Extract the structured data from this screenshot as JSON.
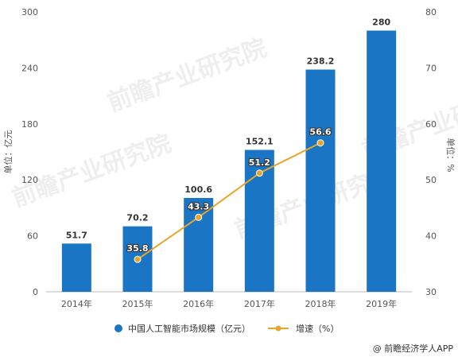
{
  "chart_data": {
    "type": "bar",
    "categories": [
      "2014年",
      "2015年",
      "2016年",
      "2017年",
      "2018年",
      "2019年"
    ],
    "series": [
      {
        "name": "中国人工智能市场规模（亿元）",
        "type": "bar",
        "axis": "left",
        "values": [
          51.7,
          70.2,
          100.6,
          152.1,
          238.2,
          280
        ],
        "labels": [
          "51.7",
          "70.2",
          "100.6",
          "152.1",
          "238.2",
          "280"
        ]
      },
      {
        "name": "增速（%）",
        "type": "line",
        "axis": "right",
        "values": [
          null,
          35.8,
          43.3,
          51.2,
          56.6,
          null
        ],
        "labels": [
          null,
          "35.8",
          "43.3",
          "51.2",
          "56.6",
          null
        ]
      }
    ],
    "y_left": {
      "label": "单位：亿元",
      "range": [
        0,
        300
      ],
      "ticks": [
        "0",
        "60",
        "120",
        "180",
        "240",
        "300"
      ]
    },
    "y_right": {
      "label": "单位：%",
      "range": [
        30,
        80
      ],
      "ticks": [
        "30",
        "40",
        "50",
        "60",
        "70",
        "80"
      ]
    },
    "legend_position": "bottom",
    "grid": false
  },
  "colors": {
    "bar": "#1a76c4",
    "line": "#e8a52a",
    "axis": "#bbbbbb",
    "text": "#555555"
  },
  "credit": "@ 前瞻经济学人APP",
  "watermark": "前瞻产业研究院"
}
